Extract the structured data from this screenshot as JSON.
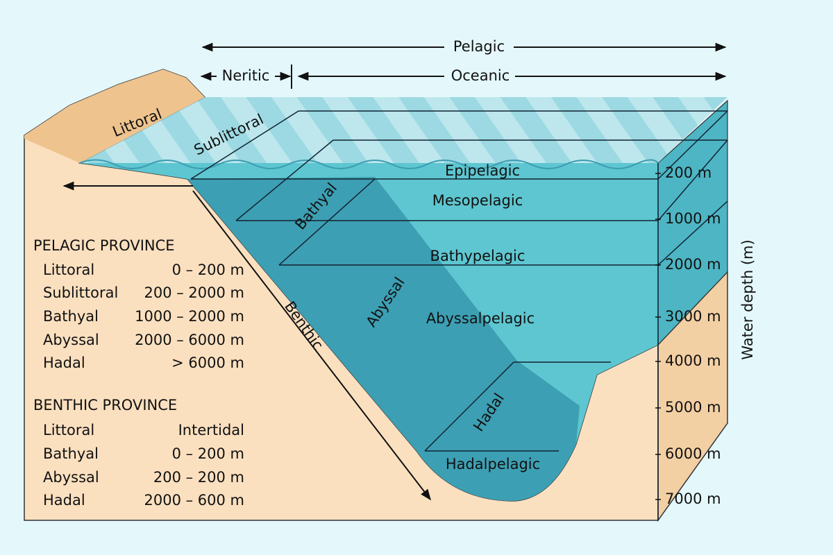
{
  "header": {
    "pelagic": "Pelagic",
    "neritic": "Neritic",
    "oceanic": "Oceanic"
  },
  "benthic_zones": {
    "littoral": "Littoral",
    "sublittoral": "Sublittoral",
    "bathyal": "Bathyal",
    "abyssal": "Abyssal",
    "hadal": "Hadal",
    "benthic": "Benthic"
  },
  "pelagic_zones": [
    "Epipelagic",
    "Mesopelagic",
    "Bathypelagic",
    "Abyssalpelagic",
    "Hadalpelagic"
  ],
  "depth_axis": {
    "title": "Water depth (m)",
    "labels": [
      "200 m",
      "1000 m",
      "2000 m",
      "3000 m",
      "4000 m",
      "5000 m",
      "6000 m",
      "7000 m"
    ]
  },
  "legend": {
    "pelagic": {
      "title": "PELAGIC PROVINCE",
      "rows": [
        [
          "Littoral",
          "0 – 200 m"
        ],
        [
          "Sublittoral",
          "200 – 2000 m"
        ],
        [
          "Bathyal",
          "1000 – 2000 m"
        ],
        [
          "Abyssal",
          "2000 – 6000 m"
        ],
        [
          "Hadal",
          "> 6000 m"
        ]
      ]
    },
    "benthic": {
      "title": "BENTHIC PROVINCE",
      "rows": [
        [
          "Littoral",
          "Intertidal"
        ],
        [
          "Bathyal",
          "0 – 200 m"
        ],
        [
          "Abyssal",
          "200 – 200 m"
        ],
        [
          "Hadal",
          "2000 – 600 m"
        ]
      ]
    }
  }
}
